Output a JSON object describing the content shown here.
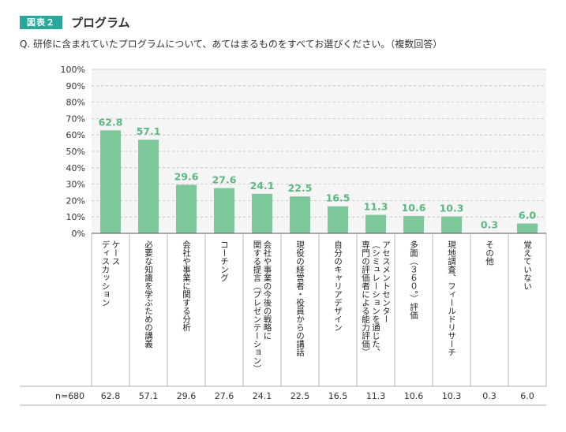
{
  "header": {
    "figure_label": "図表２",
    "title": "プログラム",
    "question": "Q. 研修に含まれていたプログラムについて、あてはまるものをすべてお選びください。（複数回答）"
  },
  "colors": {
    "bar": "#7ec79a",
    "value_label": "#5cb882",
    "accent": "#2aa79b",
    "plot_bg": "#f5f5f5"
  },
  "chart_data": {
    "type": "bar",
    "title": "プログラム",
    "ylabel": "",
    "xlabel": "",
    "ylim": [
      0,
      100
    ],
    "y_ticks": [
      "0%",
      "10%",
      "20%",
      "30%",
      "40%",
      "50%",
      "60%",
      "70%",
      "80%",
      "90%",
      "100%"
    ],
    "categories": [
      [
        "ケース",
        "ディスカッション"
      ],
      [
        "必要な知識を学ぶための講義"
      ],
      [
        "会社や事業に関する分析"
      ],
      [
        "コーチング"
      ],
      [
        "会社や事業の今後の戦略に",
        "関する提言（プレゼンテーション）"
      ],
      [
        "現役の経営者・役員からの講話"
      ],
      [
        "自分のキャリアデザイン"
      ],
      [
        "アセスメントセンター",
        "（シミュレーションを通じた、",
        "専門の評価者による能力評価）"
      ],
      [
        "多面（３６０°）評価"
      ],
      [
        "現地調査、フィールドリサーチ"
      ],
      [
        "その他"
      ],
      [
        "覚えていない"
      ]
    ],
    "values": [
      62.8,
      57.1,
      29.6,
      27.6,
      24.1,
      22.5,
      16.5,
      11.3,
      10.6,
      10.3,
      0.3,
      6.0
    ],
    "value_labels": [
      "62.8",
      "57.1",
      "29.6",
      "27.6",
      "24.1",
      "22.5",
      "16.5",
      "11.3",
      "10.6",
      "10.3",
      "0.3",
      "6.0"
    ],
    "n_label": "n=680"
  }
}
